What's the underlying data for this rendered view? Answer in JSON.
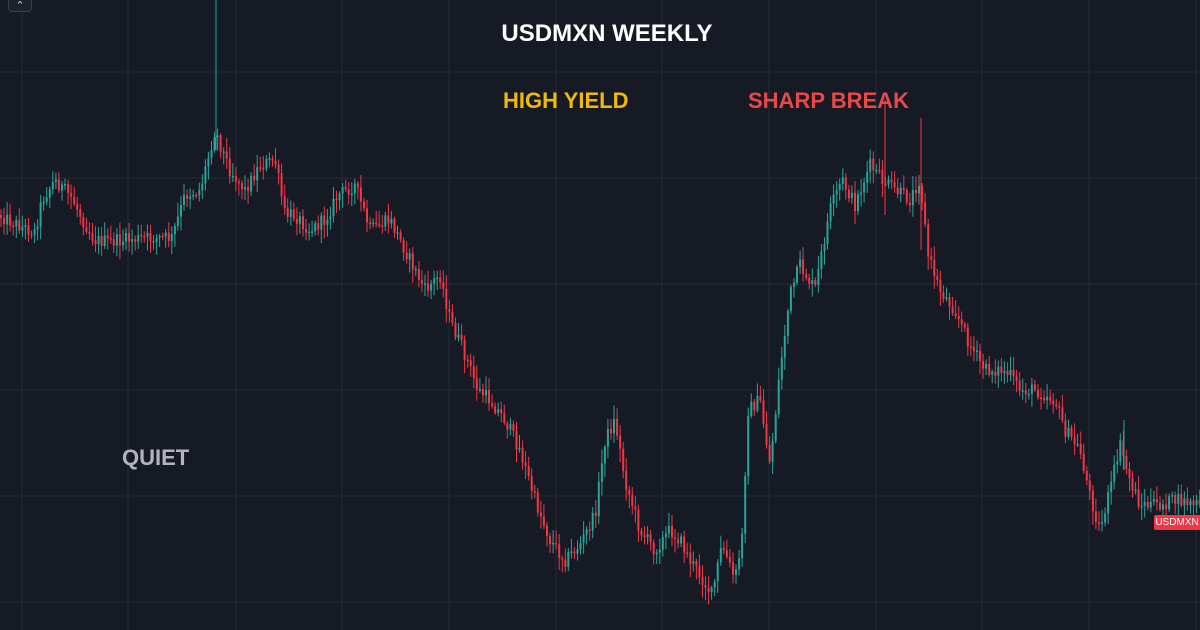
{
  "chart": {
    "title": "USDMXN WEEKLY",
    "symbol_tag": "USDMXN",
    "collapse_icon": "chevron-up-icon",
    "colors": {
      "background": "#161a25",
      "grid": "#262a35",
      "up": "#26a69a",
      "down": "#f23645",
      "title": "#ffffff",
      "high_yield": "#f0b90b",
      "sharp_break": "#e84848",
      "quiet": "#b2b5be"
    },
    "annotations": {
      "high_yield": "HIGH YIELD",
      "sharp_break": "SHARP BREAK",
      "quiet": "QUIET"
    }
  },
  "chart_data": {
    "type": "candlestick",
    "title": "USDMXN WEEKLY",
    "xlabel": "",
    "ylabel": "",
    "grid": true,
    "series": [
      {
        "symbol": "USDMXN",
        "interval": "weekly",
        "anchors": [
          [
            0,
            215
          ],
          [
            12,
            222
          ],
          [
            25,
            228
          ],
          [
            35,
            232
          ],
          [
            42,
            200
          ],
          [
            55,
            180
          ],
          [
            64,
            190
          ],
          [
            72,
            198
          ],
          [
            85,
            224
          ],
          [
            95,
            240
          ],
          [
            110,
            242
          ],
          [
            125,
            240
          ],
          [
            150,
            238
          ],
          [
            172,
            238
          ],
          [
            185,
            195
          ],
          [
            200,
            190
          ],
          [
            215,
            130
          ],
          [
            230,
            170
          ],
          [
            245,
            190
          ],
          [
            260,
            165
          ],
          [
            275,
            160
          ],
          [
            285,
            215
          ],
          [
            295,
            215
          ],
          [
            310,
            230
          ],
          [
            325,
            220
          ],
          [
            338,
            195
          ],
          [
            355,
            185
          ],
          [
            370,
            230
          ],
          [
            390,
            220
          ],
          [
            410,
            260
          ],
          [
            425,
            290
          ],
          [
            440,
            275
          ],
          [
            450,
            320
          ],
          [
            465,
            355
          ],
          [
            478,
            390
          ],
          [
            490,
            400
          ],
          [
            505,
            420
          ],
          [
            520,
            450
          ],
          [
            535,
            500
          ],
          [
            550,
            540
          ],
          [
            565,
            560
          ],
          [
            580,
            545
          ],
          [
            595,
            515
          ],
          [
            605,
            440
          ],
          [
            615,
            420
          ],
          [
            625,
            480
          ],
          [
            640,
            530
          ],
          [
            655,
            550
          ],
          [
            670,
            530
          ],
          [
            680,
            540
          ],
          [
            690,
            560
          ],
          [
            700,
            575
          ],
          [
            712,
            595
          ],
          [
            722,
            545
          ],
          [
            735,
            580
          ],
          [
            742,
            540
          ],
          [
            748,
            410
          ],
          [
            760,
            400
          ],
          [
            770,
            465
          ],
          [
            780,
            370
          ],
          [
            790,
            295
          ],
          [
            800,
            265
          ],
          [
            815,
            290
          ],
          [
            830,
            210
          ],
          [
            842,
            180
          ],
          [
            855,
            205
          ],
          [
            870,
            165
          ],
          [
            882,
            180
          ],
          [
            895,
            190
          ],
          [
            910,
            200
          ],
          [
            920,
            178
          ],
          [
            928,
            255
          ],
          [
            940,
            290
          ],
          [
            955,
            310
          ],
          [
            970,
            345
          ],
          [
            985,
            370
          ],
          [
            1000,
            370
          ],
          [
            1010,
            375
          ],
          [
            1020,
            390
          ],
          [
            1035,
            390
          ],
          [
            1055,
            400
          ],
          [
            1065,
            430
          ],
          [
            1080,
            450
          ],
          [
            1090,
            495
          ],
          [
            1100,
            530
          ],
          [
            1110,
            490
          ],
          [
            1120,
            445
          ],
          [
            1130,
            480
          ],
          [
            1140,
            505
          ],
          [
            1160,
            505
          ],
          [
            1175,
            500
          ],
          [
            1200,
            505
          ]
        ]
      }
    ]
  }
}
